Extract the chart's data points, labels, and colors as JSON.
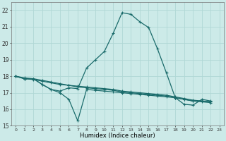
{
  "xlabel": "Humidex (Indice chaleur)",
  "xlim": [
    -0.5,
    23.5
  ],
  "ylim": [
    15,
    22.5
  ],
  "yticks": [
    15,
    16,
    17,
    18,
    19,
    20,
    21,
    22
  ],
  "xticks": [
    0,
    1,
    2,
    3,
    4,
    5,
    6,
    7,
    8,
    9,
    10,
    11,
    12,
    13,
    14,
    15,
    16,
    17,
    18,
    19,
    20,
    21,
    22,
    23
  ],
  "background_color": "#cceae8",
  "line_color": "#1a6b6b",
  "grid_color": "#b0d8d5",
  "lines": [
    {
      "x": [
        0,
        1,
        2,
        3,
        4,
        5,
        6,
        7,
        8,
        9,
        10,
        11,
        12,
        13,
        14,
        15,
        16,
        17,
        18,
        19,
        20,
        21,
        22
      ],
      "y": [
        18.0,
        17.85,
        17.85,
        17.5,
        17.2,
        17.1,
        17.3,
        17.25,
        18.5,
        19.0,
        19.5,
        20.6,
        21.85,
        21.75,
        21.3,
        20.95,
        19.65,
        18.2,
        16.7,
        16.3,
        16.25,
        16.6,
        16.5
      ]
    },
    {
      "x": [
        0,
        1,
        2,
        3,
        4,
        5,
        6,
        7,
        8,
        9,
        10,
        11,
        12,
        13,
        14,
        15,
        16,
        17,
        18,
        19,
        20,
        21,
        22
      ],
      "y": [
        18.0,
        17.85,
        17.85,
        17.5,
        17.2,
        17.0,
        16.6,
        15.3,
        17.2,
        17.15,
        17.1,
        17.05,
        17.0,
        16.95,
        16.9,
        16.85,
        16.8,
        16.75,
        16.7,
        16.6,
        16.5,
        16.5,
        16.45
      ]
    },
    {
      "x": [
        0,
        1,
        2,
        3,
        4,
        5,
        6,
        7,
        8,
        9,
        10,
        11,
        12,
        13,
        14,
        15,
        16,
        17,
        18,
        19,
        20,
        21,
        22
      ],
      "y": [
        18.0,
        17.9,
        17.85,
        17.75,
        17.65,
        17.55,
        17.45,
        17.35,
        17.3,
        17.25,
        17.2,
        17.15,
        17.05,
        17.0,
        16.95,
        16.9,
        16.85,
        16.8,
        16.7,
        16.6,
        16.5,
        16.45,
        16.4
      ]
    },
    {
      "x": [
        0,
        1,
        2,
        3,
        4,
        5,
        6,
        7,
        8,
        9,
        10,
        11,
        12,
        13,
        14,
        15,
        16,
        17,
        18,
        19,
        20,
        21,
        22
      ],
      "y": [
        18.0,
        17.85,
        17.8,
        17.7,
        17.6,
        17.5,
        17.45,
        17.4,
        17.35,
        17.3,
        17.25,
        17.2,
        17.1,
        17.05,
        17.0,
        16.95,
        16.9,
        16.85,
        16.75,
        16.65,
        16.55,
        16.5,
        16.45
      ]
    }
  ]
}
